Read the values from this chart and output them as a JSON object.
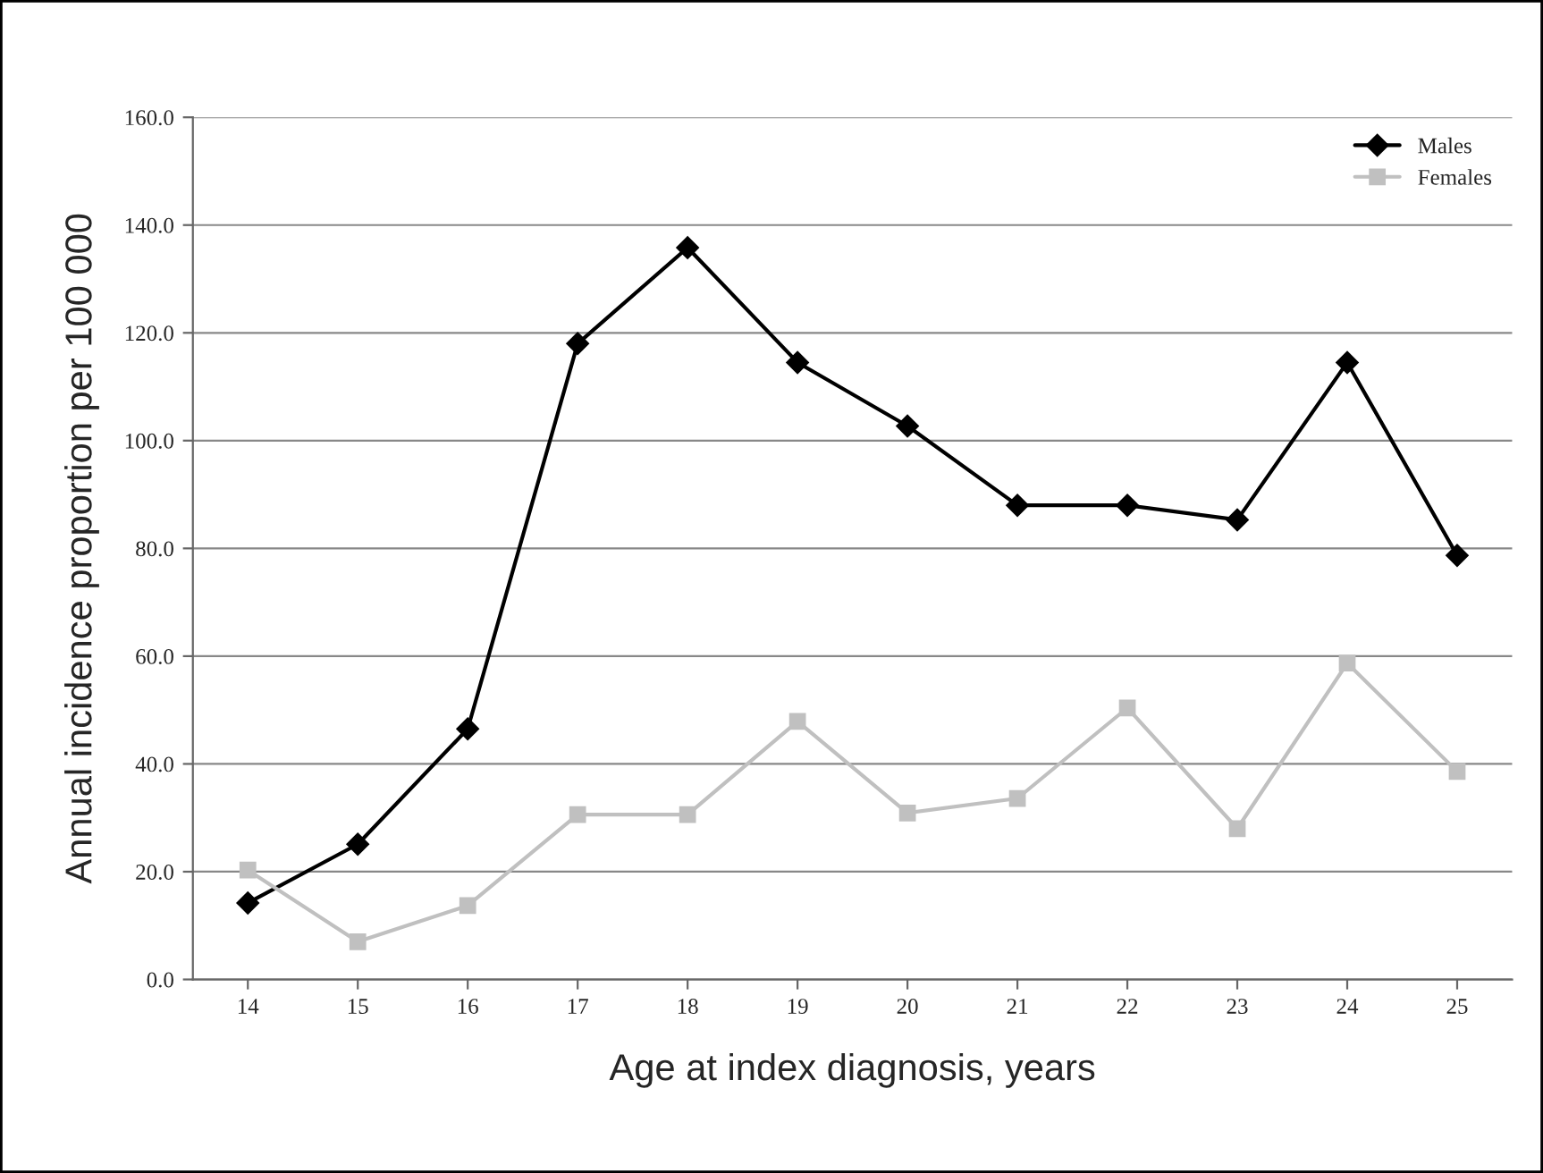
{
  "chart_data": {
    "type": "line",
    "xlabel": "Age at index diagnosis, years",
    "ylabel": "Annual incidence proportion per 100 000",
    "categories": [
      "14",
      "15",
      "16",
      "17",
      "18",
      "19",
      "20",
      "21",
      "22",
      "23",
      "24",
      "25"
    ],
    "series": [
      {
        "name": "Males",
        "color": "#000000",
        "marker": "diamond",
        "values": [
          14.2,
          25.1,
          46.5,
          118.0,
          135.8,
          114.5,
          102.7,
          88.0,
          88.0,
          85.3,
          114.5,
          78.7
        ]
      },
      {
        "name": "Females",
        "color": "#c0c0c0",
        "marker": "square",
        "values": [
          20.3,
          7.0,
          13.7,
          30.6,
          30.6,
          47.9,
          30.9,
          33.6,
          50.4,
          28.0,
          58.7,
          38.6
        ]
      }
    ],
    "ylim": [
      0,
      160
    ],
    "yticks": [
      {
        "value": 0,
        "label": "0.0"
      },
      {
        "value": 20,
        "label": "20.0"
      },
      {
        "value": 40,
        "label": "40.0"
      },
      {
        "value": 60,
        "label": "60.0"
      },
      {
        "value": 80,
        "label": "80.0"
      },
      {
        "value": 100,
        "label": "100.0"
      },
      {
        "value": 120,
        "label": "120.0"
      },
      {
        "value": 140,
        "label": "140.0"
      },
      {
        "value": 160,
        "label": "160.0"
      }
    ],
    "grid": "y",
    "legend": "top right",
    "line_style": "solid"
  }
}
